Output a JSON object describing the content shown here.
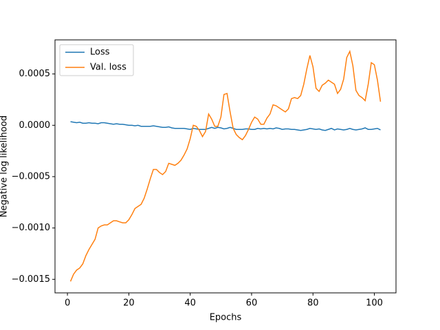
{
  "chart_data": {
    "type": "line",
    "xlabel": "Epochs",
    "ylabel": "Negative log likelihood",
    "x": [
      1,
      2,
      3,
      4,
      5,
      6,
      7,
      8,
      9,
      10,
      11,
      12,
      13,
      14,
      15,
      16,
      17,
      18,
      19,
      20,
      21,
      22,
      23,
      24,
      25,
      26,
      27,
      28,
      29,
      30,
      31,
      32,
      33,
      34,
      35,
      36,
      37,
      38,
      39,
      40,
      41,
      42,
      43,
      44,
      45,
      46,
      47,
      48,
      49,
      50,
      51,
      52,
      53,
      54,
      55,
      56,
      57,
      58,
      59,
      60,
      61,
      62,
      63,
      64,
      65,
      66,
      67,
      68,
      69,
      70,
      71,
      72,
      73,
      74,
      75,
      76,
      77,
      78,
      79,
      80,
      81,
      82,
      83,
      84,
      85,
      86,
      87,
      88,
      89,
      90,
      91,
      92,
      93,
      94,
      95,
      96,
      97,
      98,
      99,
      100,
      101,
      102
    ],
    "series": [
      {
        "name": "Loss",
        "color": "#1f77b4",
        "values": [
          3.5e-05,
          3e-05,
          2.5e-05,
          3e-05,
          2e-05,
          2e-05,
          2.5e-05,
          2e-05,
          2e-05,
          1.5e-05,
          2.5e-05,
          2.5e-05,
          2e-05,
          1.5e-05,
          1e-05,
          1.5e-05,
          1e-05,
          1e-05,
          5e-06,
          0.0,
          0.0,
          -5e-06,
          0.0,
          -1e-05,
          -1e-05,
          -1e-05,
          -1e-05,
          -5e-06,
          -1e-05,
          -1.5e-05,
          -2e-05,
          -2e-05,
          -1.5e-05,
          -2.5e-05,
          -3e-05,
          -3e-05,
          -3e-05,
          -3e-05,
          -3.5e-05,
          -4e-05,
          -3e-05,
          -3.5e-05,
          -4e-05,
          -4e-05,
          -4e-05,
          -3e-05,
          -2e-05,
          -3e-05,
          -2e-05,
          -2.5e-05,
          -3.5e-05,
          -3e-05,
          -2e-05,
          -3e-05,
          -4e-05,
          -4e-05,
          -4e-05,
          -3.5e-05,
          -3.5e-05,
          -4e-05,
          -4e-05,
          -3e-05,
          -3.5e-05,
          -3e-05,
          -3.5e-05,
          -3e-05,
          -3.5e-05,
          -2.5e-05,
          -3e-05,
          -4e-05,
          -3.5e-05,
          -3.5e-05,
          -4e-05,
          -4e-05,
          -4.5e-05,
          -5e-05,
          -4.5e-05,
          -4e-05,
          -3e-05,
          -3.5e-05,
          -4e-05,
          -3.5e-05,
          -4.5e-05,
          -5e-05,
          -4e-05,
          -3e-05,
          -4.5e-05,
          -3.5e-05,
          -4e-05,
          -4.5e-05,
          -4e-05,
          -3e-05,
          -4e-05,
          -4.5e-05,
          -4e-05,
          -3.5e-05,
          -2.5e-05,
          -4e-05,
          -4e-05,
          -3.5e-05,
          -3e-05,
          -4.5e-05
        ]
      },
      {
        "name": "Val. loss",
        "color": "#ff7f0e",
        "values": [
          -0.00152,
          -0.00145,
          -0.00141,
          -0.00139,
          -0.00135,
          -0.00127,
          -0.00121,
          -0.00116,
          -0.00111,
          -0.001,
          -0.00098,
          -0.00097,
          -0.00097,
          -0.00095,
          -0.00093,
          -0.00093,
          -0.00094,
          -0.00095,
          -0.00095,
          -0.00092,
          -0.00087,
          -0.00081,
          -0.00079,
          -0.00077,
          -0.00071,
          -0.00062,
          -0.00052,
          -0.00043,
          -0.00043,
          -0.00046,
          -0.00048,
          -0.00045,
          -0.00037,
          -0.00038,
          -0.00039,
          -0.00037,
          -0.00034,
          -0.00029,
          -0.00023,
          -0.00013,
          0.0,
          -1e-05,
          -5e-05,
          -0.00011,
          -6e-05,
          0.00011,
          6e-05,
          -1e-05,
          -1e-05,
          8e-05,
          0.0003,
          0.00031,
          0.00013,
          -3e-05,
          -9e-05,
          -0.00012,
          -0.00014,
          -0.0001,
          -4e-05,
          3e-05,
          8e-05,
          6e-05,
          1e-05,
          1e-05,
          7e-05,
          0.00011,
          0.0002,
          0.00019,
          0.00017,
          0.00015,
          0.00013,
          0.00016,
          0.00026,
          0.00027,
          0.00026,
          0.00029,
          0.0004,
          0.00055,
          0.00068,
          0.00057,
          0.00036,
          0.00033,
          0.00039,
          0.00041,
          0.00044,
          0.00042,
          0.0004,
          0.00031,
          0.00035,
          0.00045,
          0.00066,
          0.00072,
          0.00058,
          0.00034,
          0.00029,
          0.00027,
          0.00024,
          0.0004,
          0.00061,
          0.00059,
          0.00044,
          0.00023
        ]
      }
    ],
    "xlim": [
      -4.05,
      107.05
    ],
    "xticks": [
      0,
      20,
      40,
      60,
      80,
      100
    ],
    "ylim": [
      -0.001632,
      0.000832
    ],
    "yticks": [
      {
        "value": -0.0015,
        "label": "−0.0015"
      },
      {
        "value": -0.001,
        "label": "−0.0010"
      },
      {
        "value": -0.0005,
        "label": "−0.0005"
      },
      {
        "value": 0,
        "label": "0.0000"
      },
      {
        "value": 0.0005,
        "label": "0.0005"
      }
    ],
    "legend": "upper left",
    "grid": false
  }
}
